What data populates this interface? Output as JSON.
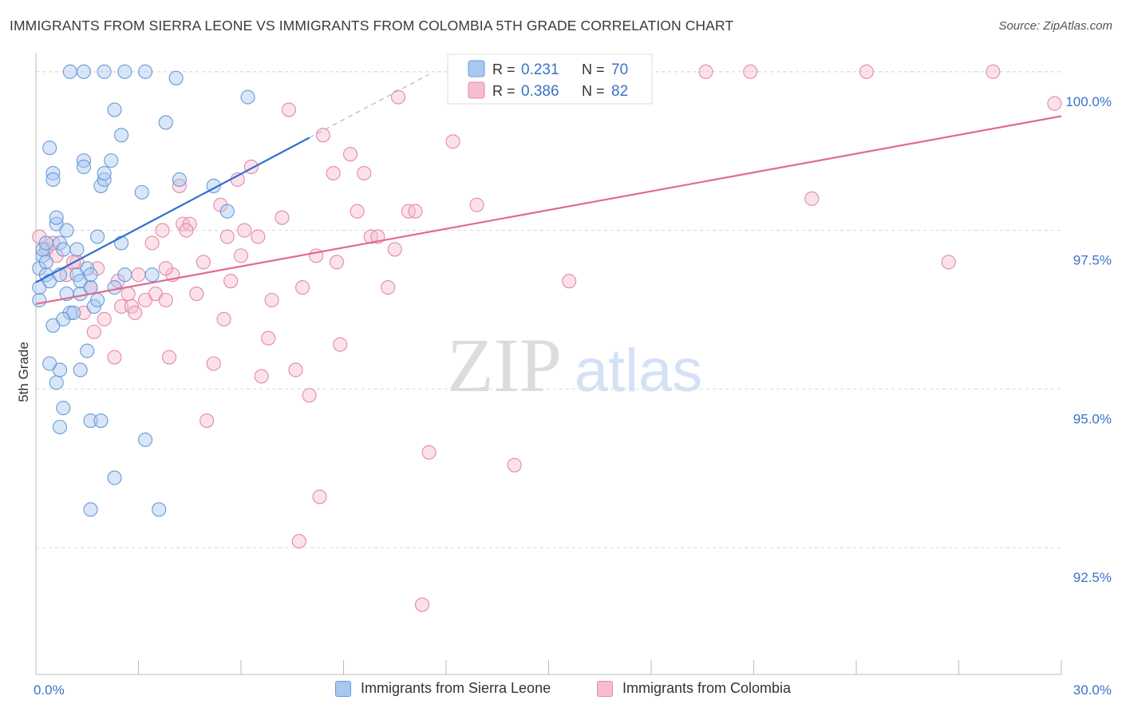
{
  "title": "IMMIGRANTS FROM SIERRA LEONE VS IMMIGRANTS FROM COLOMBIA 5TH GRADE CORRELATION CHART",
  "source": "Source: ZipAtlas.com",
  "watermark": {
    "zip": "ZIP",
    "atlas": "atlas"
  },
  "colors": {
    "blue_fill": "#a9c8f0",
    "blue_stroke": "#6a9ad8",
    "blue_line": "#2f6fd0",
    "pink_fill": "#f7bcd0",
    "pink_stroke": "#e28aa8",
    "pink_line": "#e06a92",
    "axis_label": "#3a72c8",
    "grid": "#d8d8d8"
  },
  "legend_top": {
    "rows": [
      {
        "r_label": "R =",
        "r_value": "0.231",
        "n_label": "N =",
        "n_value": "70"
      },
      {
        "r_label": "R =",
        "r_value": "0.386",
        "n_label": "N =",
        "n_value": "82"
      }
    ]
  },
  "legend_bottom": [
    {
      "label": "Immigrants from Sierra Leone"
    },
    {
      "label": "Immigrants from Colombia"
    }
  ],
  "chart_data": {
    "type": "scatter",
    "ylabel": "5th Grade",
    "xlim": [
      0,
      30
    ],
    "ylim": [
      90.5,
      100.3
    ],
    "x_tick_labels": [
      "0.0%",
      "30.0%"
    ],
    "y_ticks": [
      92.5,
      95.0,
      97.5,
      100.0
    ],
    "y_tick_labels": [
      "92.5%",
      "95.0%",
      "97.5%",
      "100.0%"
    ],
    "grid": true,
    "legend_position": "top-center",
    "series": [
      {
        "name": "Immigrants from Sierra Leone",
        "trend": {
          "x0": 0.0,
          "y0": 96.68,
          "x1": 8.0,
          "y1": 98.96,
          "dash_to_x": 11.5
        },
        "points": [
          [
            0.1,
            96.4
          ],
          [
            0.1,
            96.6
          ],
          [
            0.1,
            96.9
          ],
          [
            0.2,
            97.1
          ],
          [
            0.2,
            97.2
          ],
          [
            0.3,
            97.0
          ],
          [
            0.3,
            96.8
          ],
          [
            0.3,
            97.3
          ],
          [
            0.4,
            96.7
          ],
          [
            0.4,
            98.8
          ],
          [
            0.5,
            98.4
          ],
          [
            0.5,
            98.3
          ],
          [
            0.6,
            97.6
          ],
          [
            0.6,
            97.7
          ],
          [
            0.7,
            97.3
          ],
          [
            0.7,
            96.8
          ],
          [
            0.8,
            97.2
          ],
          [
            0.9,
            97.5
          ],
          [
            0.9,
            96.5
          ],
          [
            1.0,
            96.2
          ],
          [
            1.1,
            96.2
          ],
          [
            1.2,
            97.2
          ],
          [
            1.2,
            96.8
          ],
          [
            1.3,
            96.5
          ],
          [
            1.3,
            96.7
          ],
          [
            1.4,
            98.6
          ],
          [
            1.4,
            98.5
          ],
          [
            1.5,
            96.9
          ],
          [
            1.6,
            96.6
          ],
          [
            1.6,
            96.8
          ],
          [
            1.7,
            96.3
          ],
          [
            1.8,
            97.4
          ],
          [
            1.9,
            98.2
          ],
          [
            2.0,
            98.3
          ],
          [
            2.0,
            98.4
          ],
          [
            2.2,
            98.6
          ],
          [
            2.3,
            96.6
          ],
          [
            2.3,
            99.4
          ],
          [
            2.5,
            99.0
          ],
          [
            2.5,
            97.3
          ],
          [
            2.6,
            96.8
          ],
          [
            3.1,
            98.1
          ],
          [
            3.4,
            96.8
          ],
          [
            3.8,
            99.2
          ],
          [
            4.1,
            99.9
          ],
          [
            4.2,
            98.3
          ],
          [
            5.2,
            98.2
          ],
          [
            5.6,
            97.8
          ],
          [
            6.2,
            99.6
          ],
          [
            0.5,
            96.0
          ],
          [
            0.6,
            95.1
          ],
          [
            0.7,
            95.3
          ],
          [
            0.7,
            94.4
          ],
          [
            0.8,
            94.7
          ],
          [
            1.3,
            95.3
          ],
          [
            1.5,
            95.6
          ],
          [
            1.6,
            94.5
          ],
          [
            1.9,
            94.5
          ],
          [
            1.6,
            93.1
          ],
          [
            2.3,
            93.6
          ],
          [
            3.2,
            94.2
          ],
          [
            3.6,
            93.1
          ],
          [
            1.0,
            100.0
          ],
          [
            1.4,
            100.0
          ],
          [
            2.0,
            100.0
          ],
          [
            2.6,
            100.0
          ],
          [
            3.2,
            100.0
          ],
          [
            0.4,
            95.4
          ],
          [
            0.8,
            96.1
          ],
          [
            1.8,
            96.4
          ]
        ]
      },
      {
        "name": "Immigrants from Colombia",
        "trend": {
          "x0": 0.0,
          "y0": 96.34,
          "x1": 30.0,
          "y1": 99.3
        },
        "points": [
          [
            0.1,
            97.4
          ],
          [
            0.3,
            97.2
          ],
          [
            0.6,
            97.1
          ],
          [
            0.9,
            96.8
          ],
          [
            1.2,
            97.0
          ],
          [
            1.4,
            96.2
          ],
          [
            1.6,
            96.6
          ],
          [
            1.8,
            96.9
          ],
          [
            2.0,
            96.1
          ],
          [
            2.3,
            95.5
          ],
          [
            2.4,
            96.7
          ],
          [
            2.5,
            96.3
          ],
          [
            2.7,
            96.5
          ],
          [
            2.8,
            96.3
          ],
          [
            3.0,
            96.8
          ],
          [
            3.2,
            96.4
          ],
          [
            3.4,
            97.3
          ],
          [
            3.5,
            96.5
          ],
          [
            3.7,
            97.5
          ],
          [
            3.8,
            96.4
          ],
          [
            3.9,
            95.5
          ],
          [
            4.0,
            96.8
          ],
          [
            4.3,
            97.6
          ],
          [
            4.5,
            97.6
          ],
          [
            4.7,
            96.5
          ],
          [
            4.9,
            97.0
          ],
          [
            5.0,
            94.5
          ],
          [
            5.2,
            95.4
          ],
          [
            5.4,
            97.9
          ],
          [
            5.5,
            96.1
          ],
          [
            5.7,
            96.7
          ],
          [
            5.9,
            98.3
          ],
          [
            6.0,
            97.1
          ],
          [
            6.1,
            97.5
          ],
          [
            6.3,
            98.5
          ],
          [
            6.5,
            97.4
          ],
          [
            6.6,
            95.2
          ],
          [
            6.9,
            96.4
          ],
          [
            7.2,
            97.7
          ],
          [
            7.4,
            99.4
          ],
          [
            7.6,
            95.3
          ],
          [
            7.8,
            96.6
          ],
          [
            8.0,
            94.9
          ],
          [
            8.2,
            97.1
          ],
          [
            8.3,
            93.3
          ],
          [
            8.4,
            99.0
          ],
          [
            8.7,
            98.4
          ],
          [
            8.9,
            95.7
          ],
          [
            9.2,
            98.7
          ],
          [
            9.4,
            97.8
          ],
          [
            9.6,
            98.4
          ],
          [
            9.8,
            97.4
          ],
          [
            10.0,
            97.4
          ],
          [
            10.3,
            96.6
          ],
          [
            10.5,
            97.2
          ],
          [
            10.6,
            99.6
          ],
          [
            10.9,
            97.8
          ],
          [
            11.1,
            97.8
          ],
          [
            11.3,
            91.6
          ],
          [
            11.5,
            94.0
          ],
          [
            12.2,
            98.9
          ],
          [
            12.9,
            97.9
          ],
          [
            14.0,
            93.8
          ],
          [
            15.6,
            96.7
          ],
          [
            19.6,
            100.0
          ],
          [
            20.9,
            100.0
          ],
          [
            22.7,
            98.0
          ],
          [
            24.3,
            100.0
          ],
          [
            26.7,
            97.0
          ],
          [
            28.0,
            100.0
          ],
          [
            29.8,
            99.5
          ],
          [
            7.7,
            92.6
          ],
          [
            0.5,
            97.3
          ],
          [
            1.1,
            97.0
          ],
          [
            2.9,
            96.2
          ],
          [
            3.8,
            96.9
          ],
          [
            4.2,
            98.2
          ],
          [
            5.6,
            97.4
          ],
          [
            6.8,
            95.8
          ],
          [
            8.8,
            97.0
          ],
          [
            4.4,
            97.5
          ],
          [
            1.7,
            95.9
          ]
        ]
      }
    ]
  }
}
